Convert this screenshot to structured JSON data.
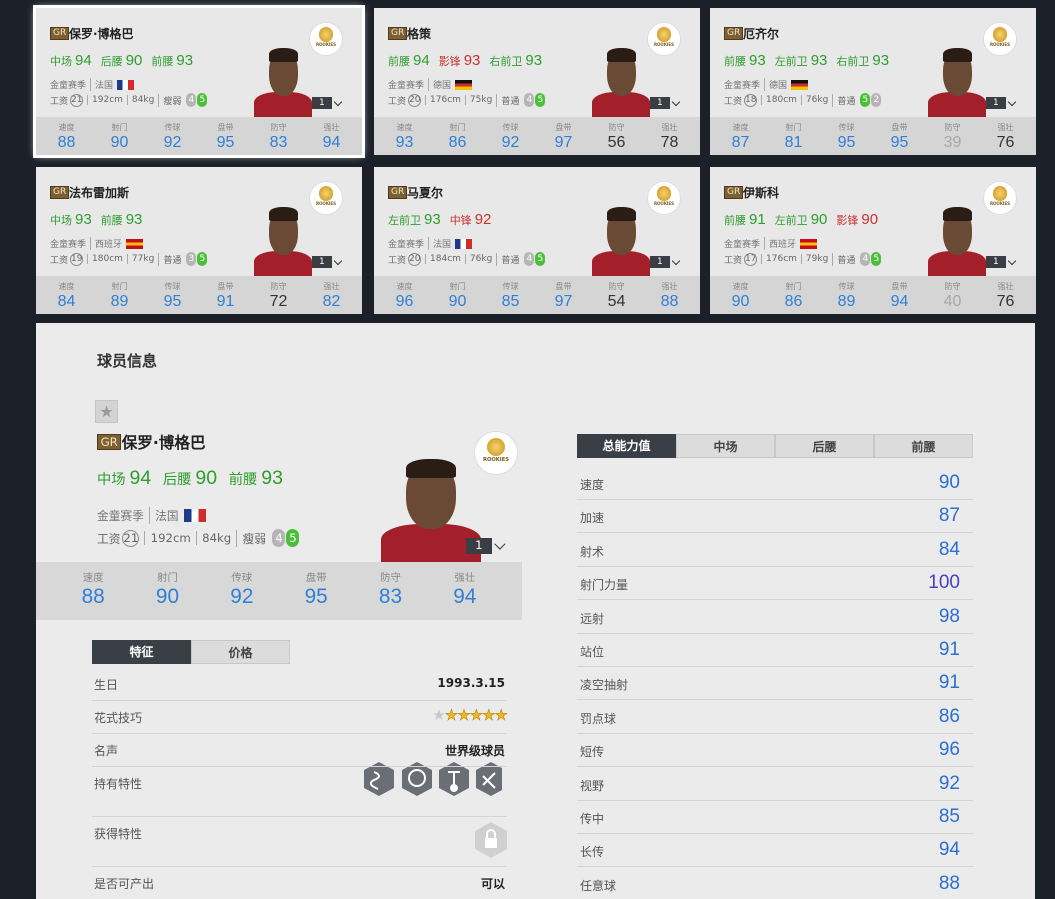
{
  "labels": {
    "badge": "GR",
    "season": "金童赛季",
    "wage": "工资",
    "rookies": "ROOKIES",
    "stats": [
      "速度",
      "射门",
      "传球",
      "盘带",
      "防守",
      "强壮"
    ]
  },
  "cards": [
    {
      "name": "保罗·博格巴",
      "selected": true,
      "positions": [
        {
          "name": "中场",
          "rating": 94,
          "color": "#2e9e2e"
        },
        {
          "name": "后腰",
          "rating": 90,
          "color": "#2e9e2e"
        },
        {
          "name": "前腰",
          "rating": 93,
          "color": "#2e9e2e"
        }
      ],
      "country": "法国",
      "flag": {
        "dir": "v",
        "colors": [
          "#1e3a8a",
          "#ffffff",
          "#d22b2b"
        ]
      },
      "wage": 21,
      "height": "192cm",
      "weight": "84kg",
      "body": "瘦弱",
      "weak_foot": 4,
      "skill_moves": 5,
      "level": 1,
      "stats": [
        88,
        90,
        92,
        95,
        83,
        94
      ]
    },
    {
      "name": "格策",
      "positions": [
        {
          "name": "前腰",
          "rating": 94,
          "color": "#2e9e2e"
        },
        {
          "name": "影锋",
          "rating": 93,
          "color": "#c8322d"
        },
        {
          "name": "右前卫",
          "rating": 93,
          "color": "#2e9e2e"
        }
      ],
      "country": "德国",
      "flag": {
        "dir": "h",
        "colors": [
          "#111111",
          "#d22b2b",
          "#f2c200"
        ]
      },
      "wage": 20,
      "height": "176cm",
      "weight": "75kg",
      "body": "普通",
      "weak_foot": 4,
      "skill_moves": 5,
      "level": 1,
      "stats": [
        93,
        86,
        92,
        97,
        56,
        78
      ]
    },
    {
      "name": "厄齐尔",
      "positions": [
        {
          "name": "前腰",
          "rating": 93,
          "color": "#2e9e2e"
        },
        {
          "name": "左前卫",
          "rating": 93,
          "color": "#2e9e2e"
        },
        {
          "name": "右前卫",
          "rating": 93,
          "color": "#2e9e2e"
        }
      ],
      "country": "德国",
      "flag": {
        "dir": "h",
        "colors": [
          "#111111",
          "#d22b2b",
          "#f2c200"
        ]
      },
      "wage": 18,
      "height": "180cm",
      "weight": "76kg",
      "body": "普通",
      "weak_foot": 5,
      "skill_moves": 2,
      "level": 1,
      "stats": [
        87,
        81,
        95,
        95,
        39,
        76
      ]
    },
    {
      "name": "法布雷加斯",
      "positions": [
        {
          "name": "中场",
          "rating": 93,
          "color": "#2e9e2e"
        },
        {
          "name": "前腰",
          "rating": 93,
          "color": "#2e9e2e"
        }
      ],
      "country": "西班牙",
      "flag": {
        "dir": "h",
        "colors": [
          "#c60b1e",
          "#ffc400",
          "#c60b1e"
        ]
      },
      "wage": 19,
      "height": "180cm",
      "weight": "77kg",
      "body": "普通",
      "weak_foot": 3,
      "skill_moves": 5,
      "level": 1,
      "stats": [
        84,
        89,
        95,
        91,
        72,
        82
      ]
    },
    {
      "name": "马夏尔",
      "positions": [
        {
          "name": "左前卫",
          "rating": 93,
          "color": "#2e9e2e"
        },
        {
          "name": "中锋",
          "rating": 92,
          "color": "#c8322d"
        }
      ],
      "country": "法国",
      "flag": {
        "dir": "v",
        "colors": [
          "#1e3a8a",
          "#ffffff",
          "#d22b2b"
        ]
      },
      "wage": 20,
      "height": "184cm",
      "weight": "76kg",
      "body": "普通",
      "weak_foot": 4,
      "skill_moves": 5,
      "level": 1,
      "stats": [
        96,
        90,
        85,
        97,
        54,
        88
      ]
    },
    {
      "name": "伊斯科",
      "positions": [
        {
          "name": "前腰",
          "rating": 91,
          "color": "#2e9e2e"
        },
        {
          "name": "左前卫",
          "rating": 90,
          "color": "#2e9e2e"
        },
        {
          "name": "影锋",
          "rating": 90,
          "color": "#c8322d"
        }
      ],
      "country": "西班牙",
      "flag": {
        "dir": "h",
        "colors": [
          "#c60b1e",
          "#ffc400",
          "#c60b1e"
        ]
      },
      "wage": 17,
      "height": "176cm",
      "weight": "79kg",
      "body": "普通",
      "weak_foot": 4,
      "skill_moves": 5,
      "level": 1,
      "stats": [
        90,
        86,
        89,
        94,
        40,
        76
      ]
    }
  ],
  "detail": {
    "title": "球员信息",
    "player": {
      "name": "保罗·博格巴",
      "positions": [
        {
          "name": "中场",
          "rating": 94,
          "color": "#2e9e2e"
        },
        {
          "name": "后腰",
          "rating": 90,
          "color": "#2e9e2e"
        },
        {
          "name": "前腰",
          "rating": 93,
          "color": "#2e9e2e"
        }
      ],
      "country": "法国",
      "flag": {
        "dir": "v",
        "colors": [
          "#1e3a8a",
          "#ffffff",
          "#d22b2b"
        ]
      },
      "wage": 21,
      "height": "192cm",
      "weight": "84kg",
      "body": "瘦弱",
      "weak_foot": 4,
      "skill_moves": 5,
      "level": 1,
      "stats": [
        88,
        90,
        92,
        95,
        83,
        94
      ]
    },
    "tabs": [
      "特征",
      "价格"
    ],
    "rows": [
      {
        "label": "生日",
        "value": "1993.3.15"
      },
      {
        "label": "花式技巧",
        "stars": 5
      },
      {
        "label": "名声",
        "value": "世界级球员"
      },
      {
        "label": "持有特性"
      },
      {
        "label": "获得特性"
      },
      {
        "label": "是否可产出",
        "value": "可以"
      }
    ],
    "attr_tabs": [
      "总能力值",
      "中场",
      "后腰",
      "前腰"
    ],
    "attributes": [
      {
        "name": "速度",
        "value": 90
      },
      {
        "name": "加速",
        "value": 87
      },
      {
        "name": "射术",
        "value": 84
      },
      {
        "name": "射门力量",
        "value": 100
      },
      {
        "name": "远射",
        "value": 98
      },
      {
        "name": "站位",
        "value": 91
      },
      {
        "name": "凌空抽射",
        "value": 91
      },
      {
        "name": "罚点球",
        "value": 86
      },
      {
        "name": "短传",
        "value": 96
      },
      {
        "name": "视野",
        "value": 92
      },
      {
        "name": "传中",
        "value": 85
      },
      {
        "name": "长传",
        "value": 94
      },
      {
        "name": "任意球",
        "value": 88
      }
    ]
  }
}
